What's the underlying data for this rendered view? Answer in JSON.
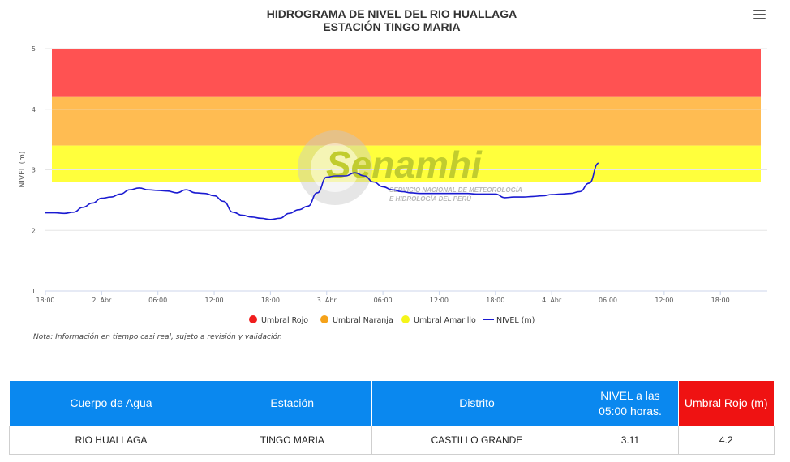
{
  "chart_data": {
    "type": "line",
    "title": "HIDROGRAMA DE NIVEL DEL RIO HUALLAGA",
    "subtitle": "ESTACIÓN TINGO MARIA",
    "ylabel": "NIVEL (m)",
    "ylim": [
      1,
      5
    ],
    "yticks": [
      "1",
      "2",
      "3",
      "4",
      "5"
    ],
    "xlim": [
      "2024-04-01 18:00",
      "2024-04-04 23:00"
    ],
    "xticks": [
      "18:00",
      "2. Abr",
      "06:00",
      "12:00",
      "18:00",
      "3. Abr",
      "06:00",
      "12:00",
      "18:00",
      "4. Abr",
      "06:00",
      "12:00",
      "18:00"
    ],
    "grid": true,
    "legend_position": "bottom-center",
    "bands": [
      {
        "name": "Umbral Rojo",
        "from": 4.2,
        "to": 5.0,
        "color": "#ff5252"
      },
      {
        "name": "Umbral Naranja",
        "from": 3.4,
        "to": 4.2,
        "color": "#ffbc52"
      },
      {
        "name": "Umbral Amarillo",
        "from": 2.8,
        "to": 3.4,
        "color": "#ffff3c"
      }
    ],
    "series": [
      {
        "name": "NIVEL (m)",
        "color": "#1a1ad1",
        "x": [
          "2024-04-01 18:00",
          "2024-04-01 19:00",
          "2024-04-01 20:00",
          "2024-04-01 21:00",
          "2024-04-01 22:00",
          "2024-04-01 23:00",
          "2024-04-02 00:00",
          "2024-04-02 01:00",
          "2024-04-02 02:00",
          "2024-04-02 03:00",
          "2024-04-02 04:00",
          "2024-04-02 05:00",
          "2024-04-02 06:00",
          "2024-04-02 07:00",
          "2024-04-02 08:00",
          "2024-04-02 09:00",
          "2024-04-02 10:00",
          "2024-04-02 11:00",
          "2024-04-02 12:00",
          "2024-04-02 13:00",
          "2024-04-02 14:00",
          "2024-04-02 15:00",
          "2024-04-02 16:00",
          "2024-04-02 17:00",
          "2024-04-02 18:00",
          "2024-04-02 19:00",
          "2024-04-02 20:00",
          "2024-04-02 21:00",
          "2024-04-02 22:00",
          "2024-04-02 23:00",
          "2024-04-03 00:00",
          "2024-04-03 01:00",
          "2024-04-03 02:00",
          "2024-04-03 03:00",
          "2024-04-03 04:00",
          "2024-04-03 05:00",
          "2024-04-03 06:00",
          "2024-04-03 07:00",
          "2024-04-03 08:00",
          "2024-04-03 09:00",
          "2024-04-03 10:00",
          "2024-04-03 11:00",
          "2024-04-03 12:00",
          "2024-04-03 13:00",
          "2024-04-03 14:00",
          "2024-04-03 15:00",
          "2024-04-03 16:00",
          "2024-04-03 17:00",
          "2024-04-03 18:00",
          "2024-04-03 19:00",
          "2024-04-03 20:00",
          "2024-04-03 21:00",
          "2024-04-03 22:00",
          "2024-04-03 23:00",
          "2024-04-04 00:00",
          "2024-04-04 01:00",
          "2024-04-04 02:00",
          "2024-04-04 03:00",
          "2024-04-04 04:00",
          "2024-04-04 05:00"
        ],
        "values": [
          2.29,
          2.29,
          2.28,
          2.3,
          2.38,
          2.45,
          2.53,
          2.55,
          2.6,
          2.67,
          2.7,
          2.67,
          2.66,
          2.65,
          2.62,
          2.67,
          2.62,
          2.61,
          2.57,
          2.48,
          2.3,
          2.25,
          2.22,
          2.2,
          2.18,
          2.2,
          2.28,
          2.34,
          2.4,
          2.62,
          2.88,
          2.9,
          2.9,
          2.95,
          2.9,
          2.8,
          2.72,
          2.67,
          2.64,
          2.62,
          2.61,
          2.61,
          2.61,
          2.61,
          2.61,
          2.61,
          2.6,
          2.6,
          2.6,
          2.54,
          2.55,
          2.55,
          2.56,
          2.57,
          2.59,
          2.6,
          2.61,
          2.64,
          2.78,
          3.11
        ]
      }
    ]
  },
  "legend": [
    {
      "label": "Umbral Rojo",
      "color": "#f01d1d"
    },
    {
      "label": "Umbral Naranja",
      "color": "#f5a21a"
    },
    {
      "label": "Umbral Amarillo",
      "color": "#f5f51a"
    },
    {
      "label": "NIVEL (m)",
      "color": "#1a1ad1"
    }
  ],
  "watermark": {
    "name": "Senamhi",
    "line1": "SERVICIO NACIONAL DE METEOROLOGÍA",
    "line2": "E HIDROLOGÍA DEL PERÚ",
    "color": "#b4c22c"
  },
  "menu_icon": "hamburger-menu-icon",
  "note": "Nota: Información en tiempo casi real, sujeto a revisión y validación",
  "table": {
    "headers": [
      "Cuerpo de Agua",
      "Estación",
      "Distrito",
      "NIVEL a las 05:00 horas.",
      "Umbral Rojo (m)"
    ],
    "header_colors": [
      "#0a88ef",
      "#0a88ef",
      "#0a88ef",
      "#0a88ef",
      "#ef1212"
    ],
    "row": [
      "RIO HUALLAGA",
      "TINGO MARIA",
      "CASTILLO GRANDE",
      "3.11",
      "4.2"
    ]
  }
}
